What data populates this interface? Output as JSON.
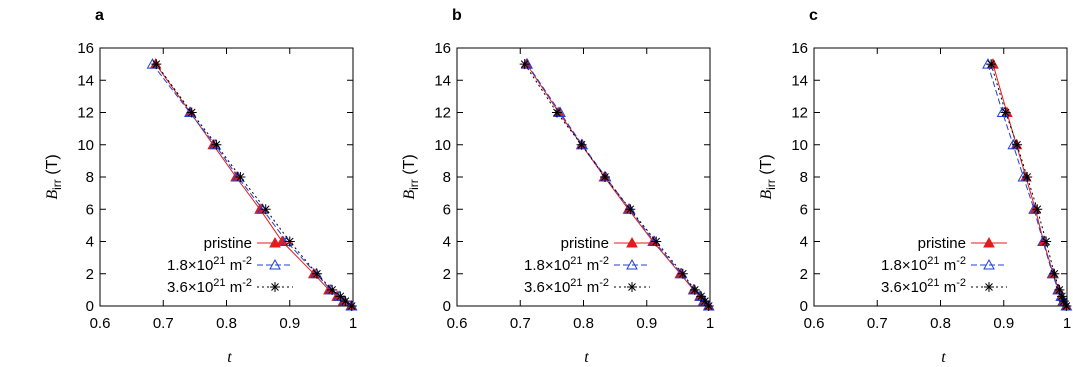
{
  "chart_data": [
    {
      "panel": "a",
      "type": "line",
      "xlabel": "t",
      "ylabel": {
        "symbol": "B",
        "subscript": "irr",
        "unit": " (T)"
      },
      "xlim": [
        0.6,
        1.0
      ],
      "ylim": [
        0,
        16
      ],
      "xticks": [
        "0.6",
        "0.7",
        "0.8",
        "0.9",
        "1"
      ],
      "yticks": [
        "0",
        "2",
        "4",
        "6",
        "8",
        "10",
        "12",
        "14",
        "16"
      ],
      "legend_position": "bottom-right",
      "series": [
        {
          "name": "pristine",
          "marker": "filled-triangle",
          "color": "#e41a1c",
          "dash": "solid",
          "x": [
            0.688,
            0.743,
            0.779,
            0.815,
            0.853,
            0.888,
            0.938,
            0.962,
            0.975,
            0.985,
            0.997
          ],
          "y": [
            15,
            12,
            10,
            8,
            6,
            4,
            2,
            1,
            0.6,
            0.3,
            0
          ]
        },
        {
          "name": "1.8×10²¹ m⁻²",
          "marker": "open-triangle",
          "color": "#1f3fdc",
          "dash": "dashed",
          "x": [
            0.683,
            0.742,
            0.782,
            0.818,
            0.857,
            0.895,
            0.942,
            0.965,
            0.978,
            0.987,
            0.998
          ],
          "y": [
            15,
            12,
            10,
            8,
            6,
            4,
            2,
            1,
            0.6,
            0.3,
            0
          ]
        },
        {
          "name": "3.6×10²¹ m⁻²",
          "marker": "star",
          "color": "#000000",
          "dash": "dotted",
          "x": [
            0.689,
            0.745,
            0.784,
            0.822,
            0.862,
            0.9,
            0.943,
            0.967,
            0.98,
            0.988,
            0.998
          ],
          "y": [
            15,
            12,
            10,
            8,
            6,
            4,
            2,
            1,
            0.6,
            0.3,
            0
          ]
        }
      ]
    },
    {
      "panel": "b",
      "type": "line",
      "xlabel": "t",
      "ylabel": {
        "symbol": "B",
        "subscript": "irr",
        "unit": " (T)"
      },
      "xlim": [
        0.6,
        1.0
      ],
      "ylim": [
        0,
        16
      ],
      "xticks": [
        "0.6",
        "0.7",
        "0.8",
        "0.9",
        "1"
      ],
      "yticks": [
        "0",
        "2",
        "4",
        "6",
        "8",
        "10",
        "12",
        "14",
        "16"
      ],
      "legend_position": "bottom-right",
      "series": [
        {
          "name": "pristine",
          "marker": "filled-triangle",
          "color": "#e41a1c",
          "dash": "solid",
          "x": [
            0.71,
            0.761,
            0.797,
            0.833,
            0.871,
            0.91,
            0.953,
            0.974,
            0.984,
            0.99,
            0.998
          ],
          "y": [
            15,
            12,
            10,
            8,
            6,
            4,
            2,
            1,
            0.6,
            0.3,
            0
          ]
        },
        {
          "name": "1.8×10²¹ m⁻²",
          "marker": "open-triangle",
          "color": "#1f3fdc",
          "dash": "dashed",
          "x": [
            0.711,
            0.763,
            0.798,
            0.835,
            0.873,
            0.912,
            0.955,
            0.975,
            0.985,
            0.991,
            0.998
          ],
          "y": [
            15,
            12,
            10,
            8,
            6,
            4,
            2,
            1,
            0.6,
            0.3,
            0
          ]
        },
        {
          "name": "3.6×10²¹ m⁻²",
          "marker": "star",
          "color": "#000000",
          "dash": "dotted",
          "x": [
            0.707,
            0.758,
            0.797,
            0.834,
            0.874,
            0.915,
            0.957,
            0.976,
            0.986,
            0.992,
            0.998
          ],
          "y": [
            15,
            12,
            10,
            8,
            6,
            4,
            2,
            1,
            0.6,
            0.3,
            0
          ]
        }
      ]
    },
    {
      "panel": "c",
      "type": "line",
      "xlabel": "t",
      "ylabel": {
        "symbol": "B",
        "subscript": "irr",
        "unit": " (T)"
      },
      "xlim": [
        0.6,
        1.0
      ],
      "ylim": [
        0,
        16
      ],
      "xticks": [
        "0.6",
        "0.7",
        "0.8",
        "0.9",
        "1"
      ],
      "yticks": [
        "0",
        "2",
        "4",
        "6",
        "8",
        "10",
        "12",
        "14",
        "16"
      ],
      "legend_position": "bottom-right",
      "series": [
        {
          "name": "pristine",
          "marker": "filled-triangle",
          "color": "#e41a1c",
          "dash": "solid",
          "x": [
            0.883,
            0.905,
            0.92,
            0.935,
            0.95,
            0.963,
            0.978,
            0.987,
            0.991,
            0.994,
            0.999
          ],
          "y": [
            15,
            12,
            10,
            8,
            6,
            4,
            2,
            1,
            0.6,
            0.3,
            0
          ]
        },
        {
          "name": "1.8×10²¹ m⁻²",
          "marker": "open-triangle",
          "color": "#1f3fdc",
          "dash": "dashed",
          "x": [
            0.875,
            0.898,
            0.915,
            0.931,
            0.948,
            0.962,
            0.977,
            0.986,
            0.991,
            0.994,
            0.999
          ],
          "y": [
            15,
            12,
            10,
            8,
            6,
            4,
            2,
            1,
            0.6,
            0.3,
            0
          ]
        },
        {
          "name": "3.6×10²¹ m⁻²",
          "marker": "star",
          "color": "#000000",
          "dash": "dotted",
          "x": [
            0.88,
            0.903,
            0.921,
            0.937,
            0.953,
            0.967,
            0.98,
            0.988,
            0.992,
            0.995,
            0.999
          ],
          "y": [
            15,
            12,
            10,
            8,
            6,
            4,
            2,
            1,
            0.6,
            0.3,
            0
          ]
        }
      ]
    }
  ],
  "legend_labels": {
    "pristine": "pristine",
    "s1": {
      "prefix": "1.8×10",
      "exp": "21",
      "unit": " m",
      "unit_exp": "-2"
    },
    "s2": {
      "prefix": "3.6×10",
      "exp": "21",
      "unit": " m",
      "unit_exp": "-2"
    }
  }
}
